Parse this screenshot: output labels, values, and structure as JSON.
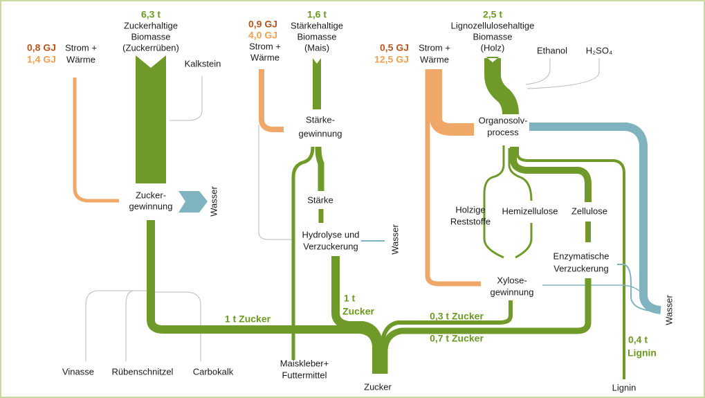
{
  "sugar_beet": {
    "mass": "6,3 t",
    "feedstock": [
      "Zuckerhaltige",
      "Biomasse",
      "(Zuckerrüben)"
    ],
    "energy_electric": "0,8 GJ",
    "energy_heat": "1,4 GJ",
    "energy_label": [
      "Strom +",
      "Wärme"
    ],
    "input": "Kalkstein",
    "process": [
      "Zucker-",
      "gewinnung"
    ],
    "water": "Wasser",
    "byproducts": [
      "Vinasse",
      "Rübenschnitzel",
      "Carbokalk"
    ],
    "output": "1 t Zucker"
  },
  "corn": {
    "mass": "1,6 t",
    "feedstock": [
      "Stärkehaltige",
      "Biomasse",
      "(Mais)"
    ],
    "energy_electric": "0,9 GJ",
    "energy_heat": "4,0 GJ",
    "energy_label": [
      "Strom +",
      "Wärme"
    ],
    "process": [
      "Stärke-",
      "gewinnung"
    ],
    "intermediate": "Stärke",
    "process2": [
      "Hydrolyse und",
      "Verzuckerung"
    ],
    "water": "Wasser",
    "byproduct": [
      "Maiskleber+",
      "Futtermittel"
    ],
    "output": [
      "1 t",
      "Zucker"
    ]
  },
  "wood": {
    "mass": "2,5 t",
    "feedstock": [
      "Lignozellulosehaltige",
      "Biomasse",
      "(Holz)"
    ],
    "energy_electric": "0,5 GJ",
    "energy_heat": "12,5 GJ",
    "energy_label": [
      "Strom +",
      "Wärme"
    ],
    "inputs": [
      "Ethanol",
      "H₂SO₄"
    ],
    "process": [
      "Organosolv-",
      "process"
    ],
    "fractions": {
      "residues": [
        "Holzige",
        "Reststoffe"
      ],
      "hemicellulose": "Hemizellulose",
      "cellulose": "Zellulose"
    },
    "process_cellulose": [
      "Enzymatische",
      "Verzuckerung"
    ],
    "process_xylose": [
      "Xylose-",
      "gewinnung"
    ],
    "output_xylose": "0,3 t Zucker",
    "output_cellulose": "0,7 t Zucker",
    "lignin_amount": [
      "0,4 t",
      "Lignin"
    ],
    "lignin": "Lignin",
    "water": "Wasser"
  },
  "product": "Zucker"
}
